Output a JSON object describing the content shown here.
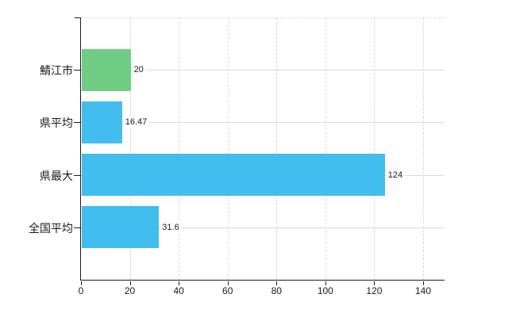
{
  "page": {
    "background": "#ffffff"
  },
  "chart_data": {
    "type": "bar",
    "orientation": "horizontal",
    "title": "",
    "categories": [
      "鯖江市",
      "県平均",
      "県最大",
      "全国平均"
    ],
    "values": [
      20,
      16.47,
      124,
      31.6
    ],
    "value_labels": [
      "20",
      "16.47",
      "124",
      "31.6"
    ],
    "bar_colors": [
      "#6fcd84",
      "#41bdee",
      "#41bdee",
      "#41bdee"
    ],
    "x_ticks": [
      0,
      20,
      40,
      60,
      80,
      100,
      120,
      140
    ],
    "x_tick_labels": [
      "0",
      "20",
      "40",
      "60",
      "80",
      "100",
      "120",
      "140"
    ],
    "xlim": [
      0,
      149
    ],
    "ylabel": "",
    "xlabel": "",
    "legend": "none",
    "grid": {
      "vertical_gridlines": "dashed",
      "horizontal_row_lines": "solid",
      "top_border": "dashed"
    },
    "colors": {
      "axis": "#1a1a1a",
      "gridline": "#d9d9d9",
      "row_line": "#dadada",
      "text": "#1a1a1a",
      "value_label_bg": "#ffffff"
    }
  }
}
